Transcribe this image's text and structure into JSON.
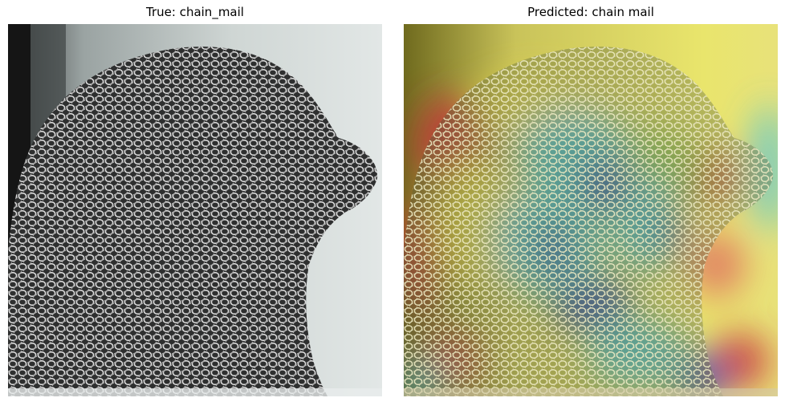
{
  "figure": {
    "panels": [
      {
        "title": "True: chain_mail",
        "image_kind": "chain mail photograph, grayscale"
      },
      {
        "title": "Predicted: chain mail",
        "image_kind": "chain mail photograph with jet-colormap heatmap overlay"
      }
    ]
  },
  "colors": {
    "page_background": "#ffffff",
    "title_text": "#000000",
    "photo_background": "#c9d1cf",
    "photo_dark_edge": "#1a1a1a",
    "mail_dark": "#2b2b2b",
    "ring_light": "#e6e6e6",
    "heat_red": "#c8323a",
    "heat_yellow": "#e6d84a",
    "heat_green": "#8fc65a",
    "heat_cyan": "#4cc3d9",
    "heat_blue": "#2b3fb5"
  }
}
